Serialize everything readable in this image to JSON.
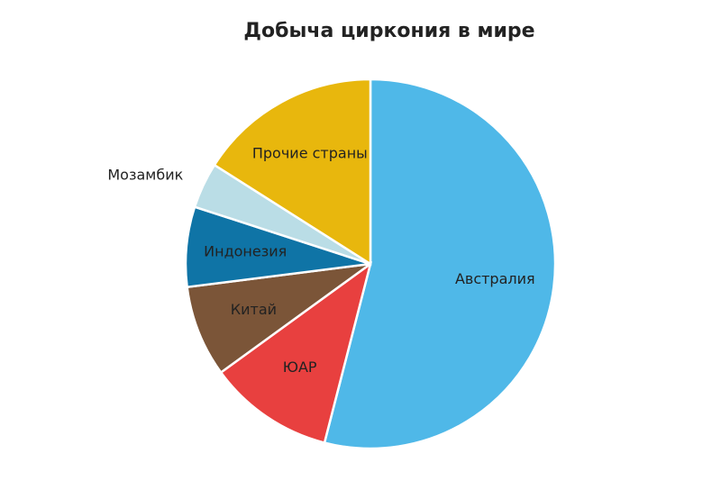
{
  "chart_data": {
    "type": "pie",
    "title": "Добыча циркония в мире",
    "categories": [
      "Австралия",
      "ЮАР",
      "Китай",
      "Индонезия",
      "Мозамбик",
      "Прочие страны"
    ],
    "values": [
      54,
      11,
      8,
      7,
      4,
      16
    ],
    "colors": [
      "#4fb8e8",
      "#e8403f",
      "#7b5538",
      "#0f74a6",
      "#badde6",
      "#e8b70d"
    ]
  }
}
